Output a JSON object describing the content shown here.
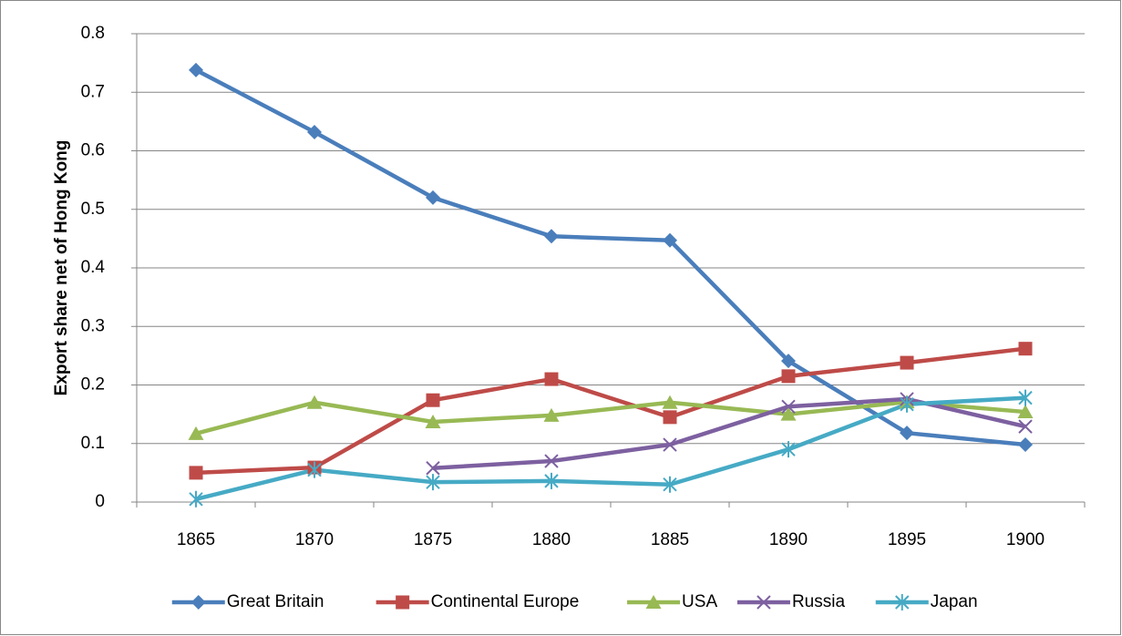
{
  "chart_data": {
    "type": "line",
    "y_label": "Export share net of Hong Kong",
    "categories": [
      "1865",
      "1870",
      "1875",
      "1880",
      "1885",
      "1890",
      "1895",
      "1900"
    ],
    "series": [
      {
        "name": "Great Britain",
        "color": "#4a7ebb",
        "marker": "diamond",
        "values": [
          0.738,
          0.632,
          0.52,
          0.454,
          0.447,
          0.241,
          0.118,
          0.098
        ]
      },
      {
        "name": "Continental Europe",
        "color": "#be4b48",
        "marker": "square",
        "values": [
          0.05,
          0.059,
          0.174,
          0.21,
          0.145,
          0.215,
          0.238,
          0.262
        ]
      },
      {
        "name": "USA",
        "color": "#98b954",
        "marker": "triangle",
        "values": [
          0.117,
          0.17,
          0.137,
          0.148,
          0.17,
          0.15,
          0.171,
          0.154
        ]
      },
      {
        "name": "Russia",
        "color": "#7d60a0",
        "marker": "x",
        "values": [
          null,
          null,
          0.058,
          0.07,
          0.098,
          0.163,
          0.176,
          0.129
        ]
      },
      {
        "name": "Japan",
        "color": "#46aac5",
        "marker": "star",
        "values": [
          0.005,
          0.055,
          0.034,
          0.036,
          0.03,
          0.09,
          0.167,
          0.178
        ]
      }
    ],
    "ylim": [
      0,
      0.8
    ],
    "yticks": [
      0,
      0.1,
      0.2,
      0.3,
      0.4,
      0.5,
      0.6,
      0.7,
      0.8
    ],
    "grid": true,
    "legend": "bottom"
  }
}
